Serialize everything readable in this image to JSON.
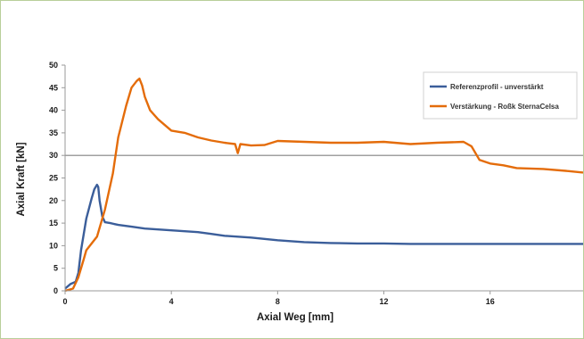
{
  "chart_data": {
    "type": "line",
    "xlabel": "Axial Weg [mm]",
    "ylabel": "Axial Kraft [kN]",
    "xlim": [
      0,
      19.5
    ],
    "ylim": [
      0,
      50
    ],
    "x_ticks": [
      0,
      4,
      8,
      12,
      16
    ],
    "x_tick_labels": [
      "0",
      "4",
      "8",
      "12",
      "16"
    ],
    "y_ticks": [
      0,
      5,
      10,
      15,
      20,
      25,
      30,
      35,
      40,
      45,
      50
    ],
    "y_tick_labels": [
      "0",
      "5",
      "10",
      "15",
      "20",
      "25",
      "30",
      "35",
      "40",
      "45",
      "50"
    ],
    "reference_line": {
      "y": 30,
      "color": "#808080"
    },
    "grid": false,
    "legend_position": "top-right",
    "series": [
      {
        "name": "Referenzprofil - unverstärkt",
        "color": "#3b5e9a",
        "x": [
          0,
          0.2,
          0.4,
          0.5,
          0.6,
          0.8,
          1.0,
          1.1,
          1.2,
          1.25,
          1.3,
          1.4,
          1.5,
          1.7,
          2.0,
          2.5,
          3.0,
          3.5,
          4.0,
          4.5,
          5.0,
          5.5,
          6.0,
          7.0,
          8.0,
          9.0,
          10.0,
          11.0,
          12.0,
          13.0,
          14.0,
          15.0,
          16.0,
          17.0,
          18.0,
          19.5
        ],
        "y": [
          0.5,
          1.5,
          2.0,
          4.0,
          9.0,
          16.0,
          20.5,
          22.5,
          23.5,
          23.0,
          20.0,
          16.5,
          15.2,
          15.0,
          14.6,
          14.2,
          13.8,
          13.6,
          13.4,
          13.2,
          13.0,
          12.6,
          12.2,
          11.8,
          11.2,
          10.8,
          10.6,
          10.5,
          10.5,
          10.4,
          10.4,
          10.4,
          10.4,
          10.4,
          10.4,
          10.4
        ]
      },
      {
        "name": "Verstärkung - Roßk SternaCelsa",
        "color": "#e46c0a",
        "x": [
          0,
          0.3,
          0.5,
          0.7,
          0.8,
          1.0,
          1.2,
          1.5,
          1.8,
          2.0,
          2.3,
          2.5,
          2.7,
          2.8,
          2.9,
          3.0,
          3.2,
          3.5,
          3.8,
          4.0,
          4.5,
          5.0,
          5.5,
          6.0,
          6.4,
          6.5,
          6.6,
          7.0,
          7.5,
          8.0,
          9.0,
          10.0,
          11.0,
          12.0,
          13.0,
          14.0,
          15.0,
          15.3,
          15.6,
          16.0,
          16.5,
          17.0,
          18.0,
          19.0,
          19.5
        ],
        "y": [
          0,
          0.5,
          3.0,
          7.0,
          9.0,
          10.5,
          12.0,
          18.0,
          26.0,
          34.0,
          41.0,
          45.0,
          46.5,
          47.0,
          45.5,
          43.0,
          40.0,
          38.0,
          36.5,
          35.5,
          35.0,
          34.0,
          33.3,
          32.8,
          32.5,
          30.5,
          32.5,
          32.2,
          32.3,
          33.2,
          33.0,
          32.8,
          32.8,
          33.0,
          32.5,
          32.8,
          33.0,
          32.0,
          29.0,
          28.2,
          27.8,
          27.2,
          27.0,
          26.5,
          26.2
        ]
      }
    ]
  }
}
